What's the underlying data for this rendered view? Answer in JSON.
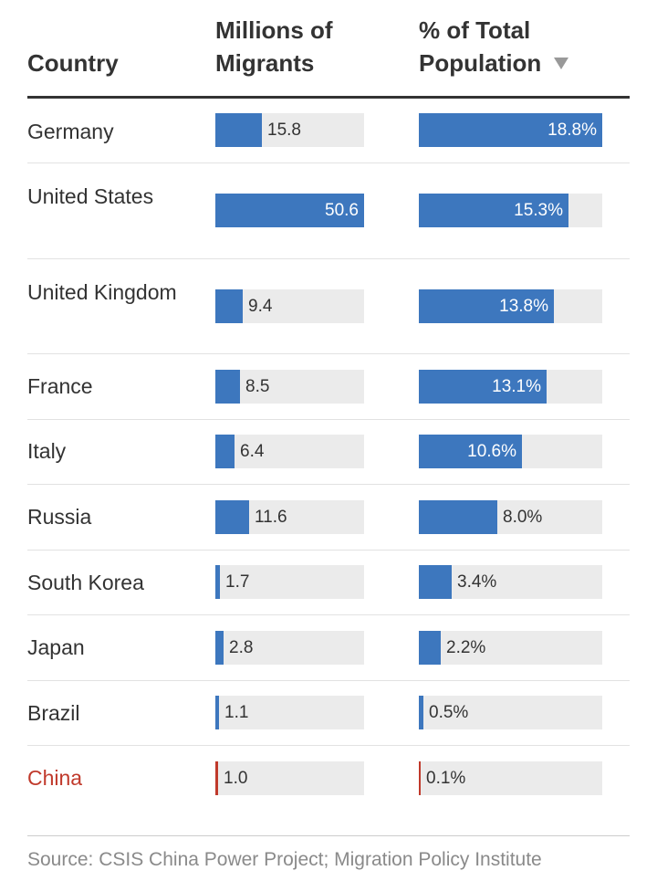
{
  "chart_data": {
    "type": "table",
    "title": "",
    "headers": {
      "country": "Country",
      "migrants": "Millions of Migrants",
      "percent": "% of Total Population"
    },
    "sort": {
      "column": "percent",
      "direction": "descending",
      "icon": "sort-descending-icon"
    },
    "scales": {
      "migrants_max": 50.6,
      "percent_max": 18.8
    },
    "rows": [
      {
        "country": "Germany",
        "migrants": 15.8,
        "migrants_label": "15.8",
        "percent": 18.8,
        "percent_label": "18.8%",
        "highlight": false
      },
      {
        "country": "United States",
        "migrants": 50.6,
        "migrants_label": "50.6",
        "percent": 15.3,
        "percent_label": "15.3%",
        "highlight": false
      },
      {
        "country": "United Kingdom",
        "migrants": 9.4,
        "migrants_label": "9.4",
        "percent": 13.8,
        "percent_label": "13.8%",
        "highlight": false
      },
      {
        "country": "France",
        "migrants": 8.5,
        "migrants_label": "8.5",
        "percent": 13.1,
        "percent_label": "13.1%",
        "highlight": false
      },
      {
        "country": "Italy",
        "migrants": 6.4,
        "migrants_label": "6.4",
        "percent": 10.6,
        "percent_label": "10.6%",
        "highlight": false
      },
      {
        "country": "Russia",
        "migrants": 11.6,
        "migrants_label": "11.6",
        "percent": 8.0,
        "percent_label": "8.0%",
        "highlight": false
      },
      {
        "country": "South Korea",
        "migrants": 1.7,
        "migrants_label": "1.7",
        "percent": 3.4,
        "percent_label": "3.4%",
        "highlight": false
      },
      {
        "country": "Japan",
        "migrants": 2.8,
        "migrants_label": "2.8",
        "percent": 2.2,
        "percent_label": "2.2%",
        "highlight": false
      },
      {
        "country": "Brazil",
        "migrants": 1.1,
        "migrants_label": "1.1",
        "percent": 0.5,
        "percent_label": "0.5%",
        "highlight": false
      },
      {
        "country": "China",
        "migrants": 1.0,
        "migrants_label": "1.0",
        "percent": 0.1,
        "percent_label": "0.1%",
        "highlight": true
      }
    ]
  },
  "colors": {
    "bar": "#3d77be",
    "highlight": "#c0392b",
    "track": "#ebebeb"
  },
  "footer": {
    "source": "Source: CSIS China Power Project; Migration Policy Institute"
  }
}
